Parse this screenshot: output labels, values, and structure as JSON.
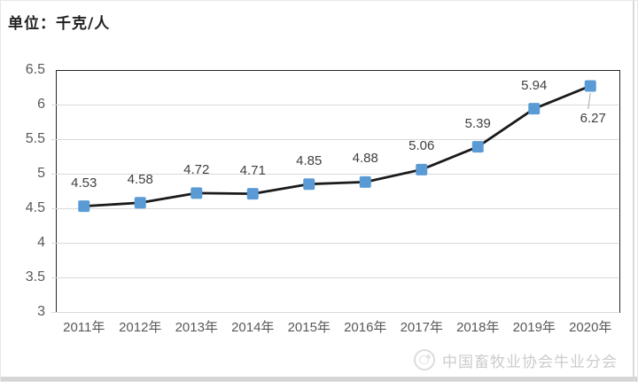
{
  "title": "单位：千克/人",
  "footer": {
    "text": "中国畜牧业协会牛业分会",
    "icon": "round-association-logo"
  },
  "colors": {
    "line": "#1a1a1a",
    "marker": "#5B9BD5",
    "grid": "#d9d9d9",
    "axis_border": "#262626",
    "tick_label": "#595959",
    "data_label": "#404040",
    "leader_line": "#a6a6a6",
    "footer_text": "#cccccc"
  },
  "chart_data": {
    "type": "line",
    "title": "单位：千克/人",
    "categories": [
      "2011年",
      "2012年",
      "2013年",
      "2014年",
      "2015年",
      "2016年",
      "2017年",
      "2018年",
      "2019年",
      "2020年"
    ],
    "values": [
      4.53,
      4.58,
      4.72,
      4.71,
      4.85,
      4.88,
      5.06,
      5.39,
      5.94,
      6.27
    ],
    "data_labels": [
      "4.53",
      "4.58",
      "4.72",
      "4.71",
      "4.85",
      "4.88",
      "5.06",
      "5.39",
      "5.94",
      "6.27"
    ],
    "label_layout": [
      "above",
      "above",
      "above",
      "above",
      "above",
      "above",
      "above",
      "above",
      "above",
      "below-with-leader"
    ],
    "xlabel": "",
    "ylabel": "",
    "ylim": [
      3,
      6.5
    ],
    "y_tick_step": 0.5,
    "y_ticks": [
      "6.5",
      "6",
      "5.5",
      "5",
      "4.5",
      "4",
      "3.5",
      "3"
    ],
    "grid": true,
    "legend": "none",
    "marker": "square"
  }
}
